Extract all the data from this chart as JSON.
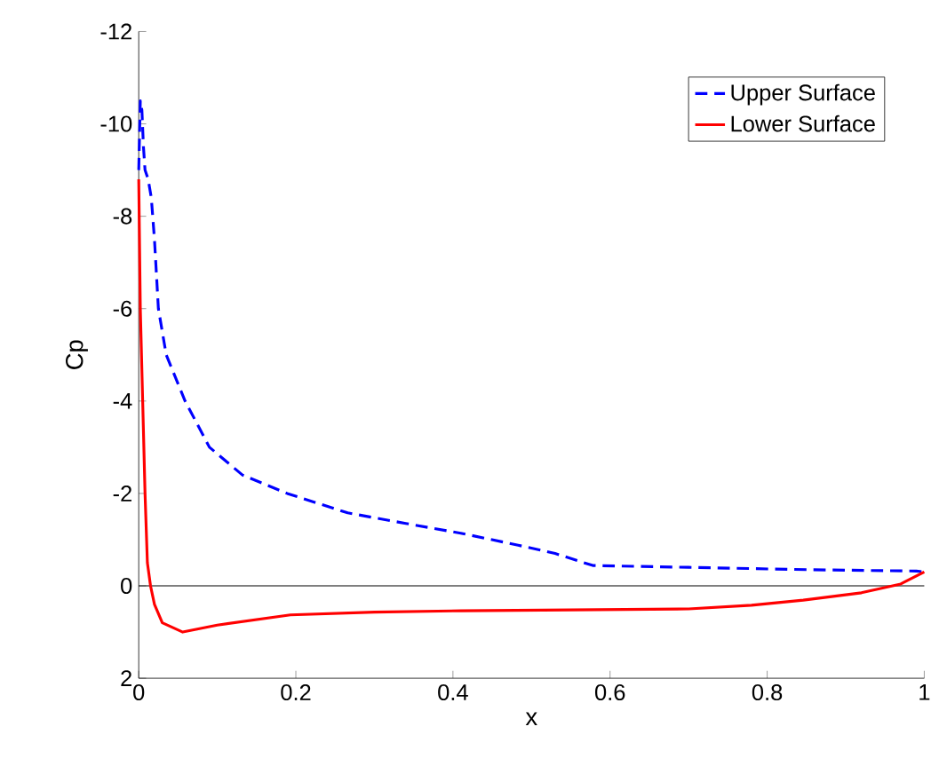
{
  "chart_data": {
    "type": "line",
    "xlabel": "x",
    "ylabel": "Cp",
    "xlim": [
      0,
      1
    ],
    "ylim": [
      2,
      -12
    ],
    "xticks": [
      0,
      0.2,
      0.4,
      0.6,
      0.8,
      1
    ],
    "yticks": [
      2,
      0,
      -2,
      -4,
      -6,
      -8,
      -10,
      -12
    ],
    "legend": "top right",
    "grid": false,
    "series": [
      {
        "name": "Upper Surface",
        "color": "#0000ff",
        "line_style": "dashed",
        "x": [
          0,
          0.002,
          0.004,
          0.006,
          0.008,
          0.012,
          0.016,
          0.02,
          0.025,
          0.035,
          0.059,
          0.09,
          0.132,
          0.189,
          0.266,
          0.34,
          0.41,
          0.483,
          0.53,
          0.578,
          0.7,
          0.85,
          0.99,
          1.0
        ],
        "values": [
          -9,
          -10.5,
          -10.3,
          -9.5,
          -9,
          -8.8,
          -8.4,
          -7.5,
          -6,
          -5,
          -4,
          -3,
          -2.4,
          -2,
          -1.58,
          -1.35,
          -1.14,
          -0.88,
          -0.7,
          -0.44,
          -0.4,
          -0.35,
          -0.32,
          -0.3
        ]
      },
      {
        "name": "Lower Surface",
        "color": "#ff0000",
        "line_style": "solid",
        "x": [
          0,
          0.002,
          0.005,
          0.008,
          0.011,
          0.015,
          0.02,
          0.03,
          0.056,
          0.1,
          0.193,
          0.3,
          0.41,
          0.55,
          0.7,
          0.78,
          0.846,
          0.92,
          0.97,
          1.0
        ],
        "values": [
          -8.8,
          -6,
          -4,
          -2,
          -0.5,
          0,
          0.4,
          0.8,
          1.0,
          0.85,
          0.63,
          0.57,
          0.54,
          0.52,
          0.5,
          0.42,
          0.31,
          0.15,
          -0.04,
          -0.3
        ]
      }
    ],
    "ref_lines": [
      {
        "axis": "y",
        "value": 0,
        "color": "#000000"
      }
    ]
  }
}
